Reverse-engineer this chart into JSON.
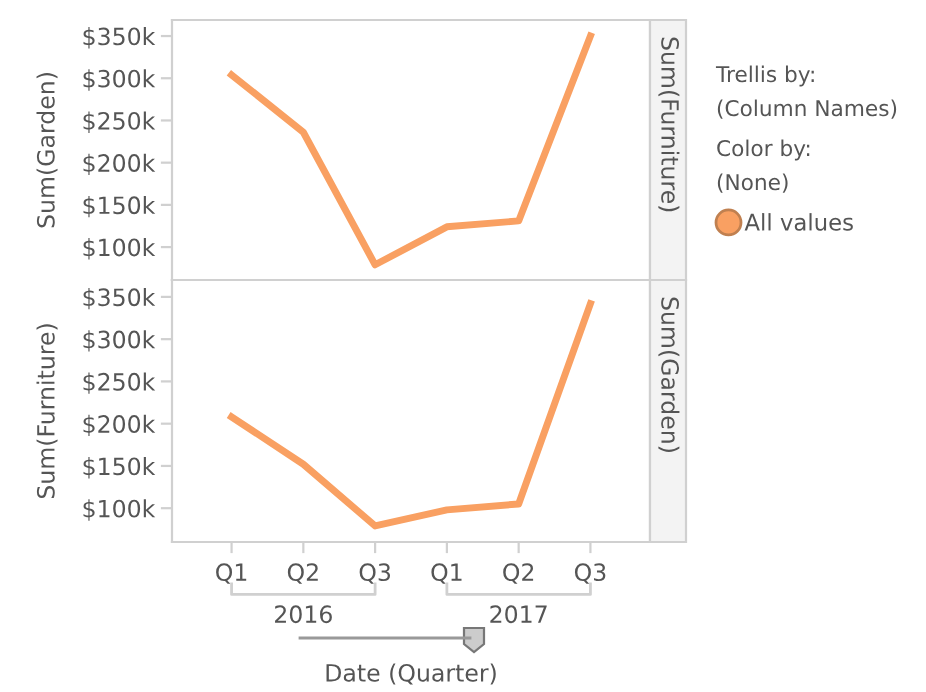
{
  "chart_data": [
    {
      "type": "line",
      "categories": [
        null,
        null,
        null,
        null,
        null,
        null
      ],
      "series": [
        {
          "name": "All values",
          "color": "#f9a062",
          "values": [
            304,
            236,
            79,
            124,
            131,
            350
          ]
        }
      ],
      "ylim": [
        61,
        369
      ],
      "yticks": [
        {
          "value": 100,
          "label": "$100k"
        },
        {
          "value": 150,
          "label": "$150k"
        },
        {
          "value": 200,
          "label": "$200k"
        },
        {
          "value": 250,
          "label": "$250k"
        },
        {
          "value": 300,
          "label": "$300k"
        },
        {
          "value": 350,
          "label": "$350k"
        }
      ],
      "ylabel": "Sum(Garden)",
      "tick_labels": "y",
      "legend": "right",
      "marker": "none",
      "line_style": "solid",
      "annotations": [
        "Sum(Furniture)",
        "Trellis by:",
        "(Column Names)",
        "Color by:",
        "(None)"
      ]
    },
    {
      "type": "line",
      "categories": [
        "Q1",
        "Q2",
        "Q3",
        "Q1",
        "Q2",
        "Q3"
      ],
      "series": [
        {
          "color": "#f9a062",
          "values": [
            208,
            152,
            79,
            98,
            105,
            342
          ]
        }
      ],
      "ylim": [
        60,
        370
      ],
      "yticks": [
        {
          "value": 100,
          "label": "$100k"
        },
        {
          "value": 150,
          "label": "$150k"
        },
        {
          "value": 200,
          "label": "$200k"
        },
        {
          "value": 250,
          "label": "$250k"
        },
        {
          "value": 300,
          "label": "$300k"
        },
        {
          "value": 350,
          "label": "$350k"
        }
      ],
      "ylabel": "Sum(Furniture)",
      "xlabel": "Date (Quarter)",
      "marker": "none",
      "line_style": "solid",
      "annotations": [
        "Sum(Garden)",
        "2016",
        "2017"
      ]
    }
  ]
}
